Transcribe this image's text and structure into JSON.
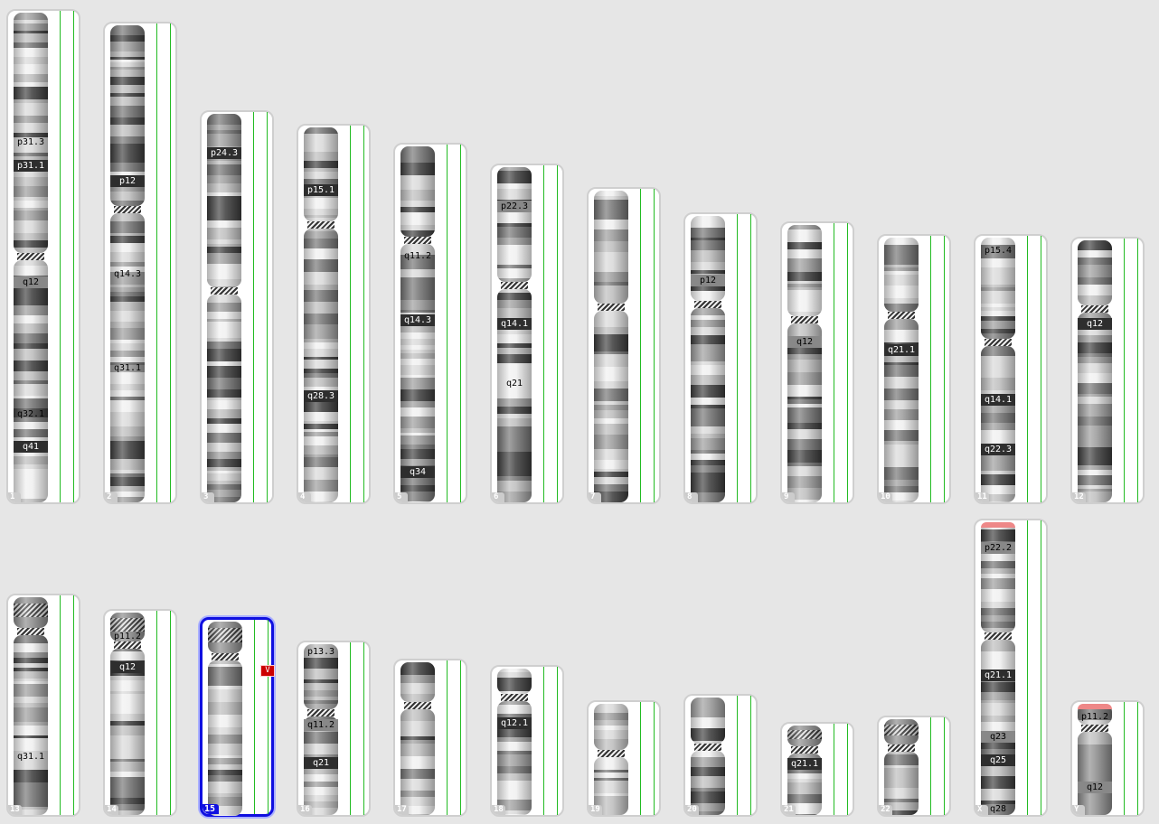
{
  "karyotype": {
    "selected_chromosome": "15",
    "chromosomes": [
      {
        "name": "1",
        "labels": [
          "p31.3",
          "p31.1",
          "q12",
          "q32.1",
          "q41"
        ]
      },
      {
        "name": "2",
        "labels": [
          "p12",
          "q14.3",
          "q31.1"
        ]
      },
      {
        "name": "3",
        "labels": [
          "p24.3"
        ]
      },
      {
        "name": "4",
        "labels": [
          "p15.1",
          "q28.3"
        ]
      },
      {
        "name": "5",
        "labels": [
          "q11.2",
          "q14.3",
          "q34"
        ]
      },
      {
        "name": "6",
        "labels": [
          "p22.3",
          "q14.1",
          "q21"
        ]
      },
      {
        "name": "7",
        "labels": []
      },
      {
        "name": "8",
        "labels": [
          "p12"
        ]
      },
      {
        "name": "9",
        "labels": [
          "q12"
        ]
      },
      {
        "name": "10",
        "labels": [
          "q21.1"
        ]
      },
      {
        "name": "11",
        "labels": [
          "p15.4",
          "q14.1",
          "q22.3"
        ]
      },
      {
        "name": "12",
        "labels": [
          "q12"
        ]
      },
      {
        "name": "13",
        "labels": [
          "q31.1"
        ]
      },
      {
        "name": "14",
        "labels": [
          "p11.2",
          "q12"
        ]
      },
      {
        "name": "15",
        "labels": [],
        "marker": "V"
      },
      {
        "name": "16",
        "labels": [
          "p13.3",
          "q11.2",
          "q21"
        ]
      },
      {
        "name": "17",
        "labels": []
      },
      {
        "name": "18",
        "labels": [
          "q12.1"
        ]
      },
      {
        "name": "19",
        "labels": []
      },
      {
        "name": "20",
        "labels": []
      },
      {
        "name": "21",
        "labels": [
          "q21.1"
        ]
      },
      {
        "name": "22",
        "labels": []
      },
      {
        "name": "X",
        "labels": [
          "p22.2",
          "q21.1",
          "q23",
          "q25",
          "q28"
        ]
      },
      {
        "name": "Y",
        "labels": [
          "p11.2",
          "q12"
        ]
      }
    ],
    "colors": {
      "track_line": "#22bb22",
      "selected": "#1010e0",
      "marker": "#cc0000"
    }
  }
}
